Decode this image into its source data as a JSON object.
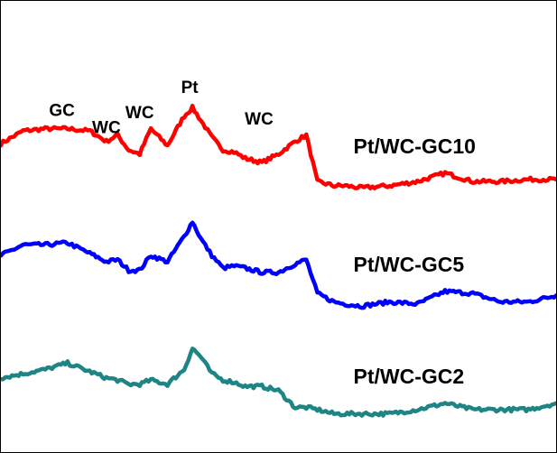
{
  "chart_data": {
    "type": "line",
    "title": "",
    "xlabel": "",
    "ylabel": "",
    "grid": false,
    "legend": "inline labels at right of each trace",
    "xlim": [
      0,
      100
    ],
    "ylim": [
      0,
      100
    ],
    "x": [
      0,
      4,
      8,
      12,
      16,
      19,
      21,
      23,
      25,
      27,
      30,
      33,
      34.5,
      36,
      38,
      40,
      42,
      44,
      47,
      50,
      53,
      55,
      57,
      60,
      62,
      65,
      70,
      75,
      80,
      85,
      90,
      95,
      100
    ],
    "series": [
      {
        "name": "Pt/WC-GC10",
        "color": "#ff0000",
        "values": [
          70.5,
          73.5,
          74,
          74,
          73.5,
          71,
          72.5,
          69,
          68,
          74,
          70,
          77,
          79,
          76,
          72,
          69,
          68.5,
          67,
          66,
          68,
          71,
          72.5,
          61.5,
          60.5,
          60.5,
          60,
          60.5,
          61.5,
          63.5,
          61.5,
          61.5,
          62,
          62
        ]
      },
      {
        "name": "Pt/WC-GC5",
        "color": "#0000ff",
        "values": [
          44,
          46.5,
          46.5,
          47,
          44.5,
          42.5,
          43,
          40.5,
          40.5,
          44,
          42.5,
          48.5,
          52,
          48,
          44,
          41,
          41.5,
          41,
          40,
          40,
          42,
          43,
          35,
          33,
          32.5,
          32,
          33,
          32.5,
          35.5,
          35,
          33,
          33,
          34.5
        ]
      },
      {
        "name": "Pt/WC-GC2",
        "color": "#1e8584",
        "values": [
          15,
          16,
          17,
          18.5,
          16.5,
          15,
          14.5,
          13.5,
          13.5,
          14.5,
          13.5,
          17,
          22,
          20,
          16,
          14.5,
          14,
          13,
          13,
          12,
          8,
          8,
          7.5,
          6.5,
          6.5,
          6.5,
          6.5,
          7.5,
          9,
          7.5,
          7.5,
          7.5,
          9
        ]
      }
    ],
    "annotations": [
      {
        "text": "GC",
        "x": 11,
        "y": 77
      },
      {
        "text": "WC",
        "x": 19,
        "y": 73
      },
      {
        "text": "WC",
        "x": 25,
        "y": 76.5
      },
      {
        "text": "Pt",
        "x": 34,
        "y": 82.5
      },
      {
        "text": "WC",
        "x": 46.5,
        "y": 75
      }
    ]
  }
}
